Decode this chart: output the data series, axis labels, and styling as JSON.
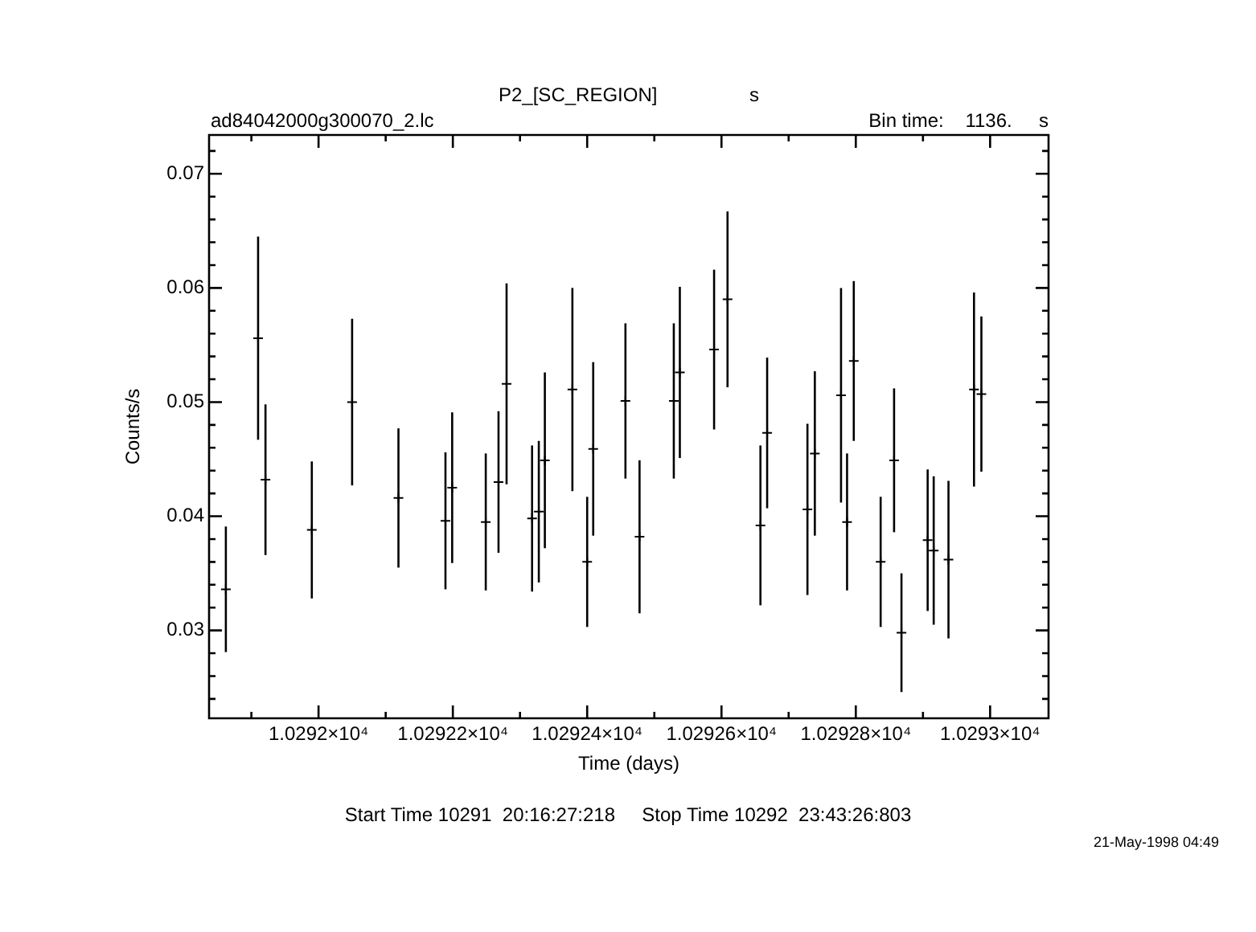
{
  "chart_data": {
    "type": "scatter",
    "title": "P2_[SC_REGION]",
    "xlabel": "Time (days)",
    "ylabel": "Counts/s",
    "annotations": [
      "s",
      "ad84042000g300070_2.lc",
      "Bin time:    1136.     s",
      "Start Time 10291  20:16:27:218     Stop Time 10292  23:43:26:803",
      "21-May-1998 04:49"
    ],
    "x": [
      10291.862,
      10291.91,
      10291.921,
      10291.99,
      10292.05,
      10292.119,
      10292.189,
      10292.199,
      10292.249,
      10292.268,
      10292.28,
      10292.318,
      10292.328,
      10292.337,
      10292.378,
      10292.4,
      10292.409,
      10292.457,
      10292.478,
      10292.529,
      10292.538,
      10292.589,
      10292.609,
      10292.658,
      10292.668,
      10292.728,
      10292.739,
      10292.778,
      10292.787,
      10292.797,
      10292.837,
      10292.857,
      10292.868,
      10292.907,
      10292.916,
      10292.938,
      10292.976,
      10292.987
    ],
    "series": [
      {
        "color": "#000000",
        "values": [
          0.0336,
          0.0556,
          0.0432,
          0.0388,
          0.05,
          0.0416,
          0.0396,
          0.0425,
          0.0395,
          0.043,
          0.0516,
          0.0398,
          0.0404,
          0.0449,
          0.0511,
          0.036,
          0.0459,
          0.0501,
          0.0382,
          0.0501,
          0.0526,
          0.0546,
          0.059,
          0.0392,
          0.0473,
          0.0406,
          0.0455,
          0.0506,
          0.0395,
          0.0536,
          0.036,
          0.0449,
          0.0298,
          0.0379,
          0.037,
          0.0362,
          0.0511,
          0.0507
        ],
        "errors": [
          0.0055,
          0.0089,
          0.0066,
          0.006,
          0.0073,
          0.0061,
          0.006,
          0.0066,
          0.006,
          0.0062,
          0.0088,
          0.0064,
          0.0062,
          0.0077,
          0.0089,
          0.0057,
          0.0076,
          0.0068,
          0.0067,
          0.0068,
          0.0075,
          0.007,
          0.0077,
          0.007,
          0.0066,
          0.0075,
          0.0072,
          0.0094,
          0.006,
          0.007,
          0.0057,
          0.0063,
          0.0052,
          0.0062,
          0.0065,
          0.0069,
          0.0085,
          0.0068
        ]
      }
    ],
    "xlim": [
      10291.837,
      10293.087
    ],
    "xticks": [
      {
        "value": 10291.9,
        "label": null
      },
      {
        "value": 10292,
        "label": "1.0292×10⁴"
      },
      {
        "value": 10292.1,
        "label": null
      },
      {
        "value": 10292.2,
        "label": "1.02922×10⁴"
      },
      {
        "value": 10292.3,
        "label": null
      },
      {
        "value": 10292.4,
        "label": "1.02924×10⁴"
      },
      {
        "value": 10292.5,
        "label": null
      },
      {
        "value": 10292.6,
        "label": "1.02926×10⁴"
      },
      {
        "value": 10292.7,
        "label": null
      },
      {
        "value": 10292.8,
        "label": "1.02928×10⁴"
      },
      {
        "value": 10292.9,
        "label": null
      },
      {
        "value": 10293,
        "label": "1.0293×10⁴"
      }
    ],
    "ylim": [
      0.0223,
      0.0734
    ],
    "yticks": [
      {
        "value": 0.024,
        "label": null
      },
      {
        "value": 0.026,
        "label": null
      },
      {
        "value": 0.028,
        "label": null
      },
      0.03,
      {
        "value": 0.032,
        "label": null
      },
      {
        "value": 0.034,
        "label": null
      },
      {
        "value": 0.036,
        "label": null
      },
      {
        "value": 0.038,
        "label": null
      },
      0.04,
      {
        "value": 0.042,
        "label": null
      },
      {
        "value": 0.044,
        "label": null
      },
      {
        "value": 0.046,
        "label": null
      },
      {
        "value": 0.048,
        "label": null
      },
      0.05,
      {
        "value": 0.052,
        "label": null
      },
      {
        "value": 0.054,
        "label": null
      },
      {
        "value": 0.056,
        "label": null
      },
      {
        "value": 0.058,
        "label": null
      },
      0.06,
      {
        "value": 0.062,
        "label": null
      },
      {
        "value": 0.064,
        "label": null
      },
      {
        "value": 0.066,
        "label": null
      },
      {
        "value": 0.068,
        "label": null
      },
      0.07,
      {
        "value": 0.072,
        "label": null
      }
    ],
    "grid": false,
    "legend": false,
    "marker": "cross"
  }
}
